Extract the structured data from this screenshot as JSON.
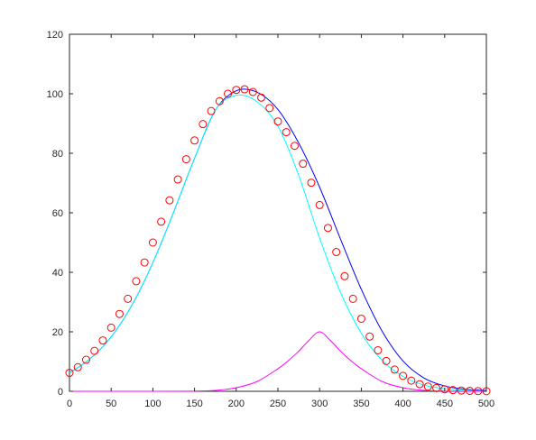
{
  "chart_data": {
    "type": "line",
    "title": "",
    "xlabel": "",
    "ylabel": "",
    "xlim": [
      0,
      500
    ],
    "ylim": [
      0,
      120
    ],
    "xticks": [
      "0",
      "50",
      "100",
      "150",
      "200",
      "250",
      "300",
      "350",
      "400",
      "450",
      "500"
    ],
    "yticks": [
      "0",
      "20",
      "40",
      "60",
      "80",
      "100",
      "120"
    ],
    "grid": false,
    "legend": "none",
    "series": [
      {
        "color": "#0000ff",
        "style": "line",
        "x": [
          0,
          25,
          50,
          75,
          100,
          125,
          150,
          175,
          200,
          225,
          250,
          275,
          300,
          325,
          350,
          375,
          400,
          425,
          450,
          475,
          500
        ],
        "y": [
          6.2,
          11,
          18.3,
          29,
          43.2,
          60.3,
          78.3,
          94.5,
          101,
          100.5,
          94.7,
          83.4,
          68.6,
          51.2,
          34.3,
          20.2,
          10.2,
          4.5,
          1.8,
          0.7,
          0.3
        ]
      },
      {
        "color": "#00ffff",
        "style": "line",
        "x": [
          0,
          25,
          50,
          75,
          100,
          125,
          150,
          175,
          200,
          225,
          250,
          275,
          300,
          325,
          350,
          375,
          400,
          425,
          450,
          475,
          500
        ],
        "y": [
          6.2,
          11,
          18.3,
          29,
          43.2,
          60.3,
          78.3,
          94.5,
          99.5,
          97.3,
          89.1,
          72.5,
          51.5,
          33.3,
          19.5,
          10.4,
          5.0,
          2.1,
          0.9,
          0.3,
          0.1
        ]
      },
      {
        "color": "#ff00ff",
        "style": "line",
        "x": [
          0,
          100,
          150,
          175,
          200,
          225,
          250,
          262.5,
          275,
          287.5,
          300,
          312.5,
          325,
          337.5,
          350,
          375,
          400,
          425,
          450,
          500
        ],
        "y": [
          0,
          0,
          0.05,
          0.3,
          1.2,
          3.3,
          7.6,
          10.3,
          13.5,
          17.2,
          20,
          17.2,
          13.5,
          10.3,
          7.6,
          3.3,
          1.2,
          0.3,
          0.05,
          0
        ]
      },
      {
        "color": "#ff0000",
        "style": "markers",
        "marker": "circle",
        "x": [
          0,
          10,
          20,
          30,
          40,
          50,
          60,
          70,
          80,
          90,
          100,
          110,
          120,
          130,
          140,
          150,
          160,
          170,
          180,
          190,
          200,
          210,
          220,
          230,
          240,
          250,
          260,
          270,
          280,
          290,
          300,
          310,
          320,
          330,
          340,
          350,
          360,
          370,
          380,
          390,
          400,
          410,
          420,
          430,
          440,
          450,
          460,
          470,
          480,
          490,
          500
        ],
        "y": [
          6.2,
          8.1,
          10.6,
          13.6,
          17.1,
          21.4,
          26,
          31.1,
          37,
          43.3,
          50,
          57,
          64.2,
          71.2,
          78,
          84.3,
          89.8,
          94.2,
          97.5,
          100,
          101.3,
          101.5,
          100.6,
          98.7,
          95.2,
          90.7,
          87.1,
          82.5,
          76.5,
          70.1,
          62.6,
          54.9,
          46.8,
          38.7,
          31.1,
          24.4,
          18.4,
          13.8,
          10.2,
          7.3,
          5.2,
          3.6,
          2.4,
          1.6,
          1.1,
          0.7,
          0.4,
          0.25,
          0.15,
          0.08,
          0.04
        ]
      }
    ]
  }
}
